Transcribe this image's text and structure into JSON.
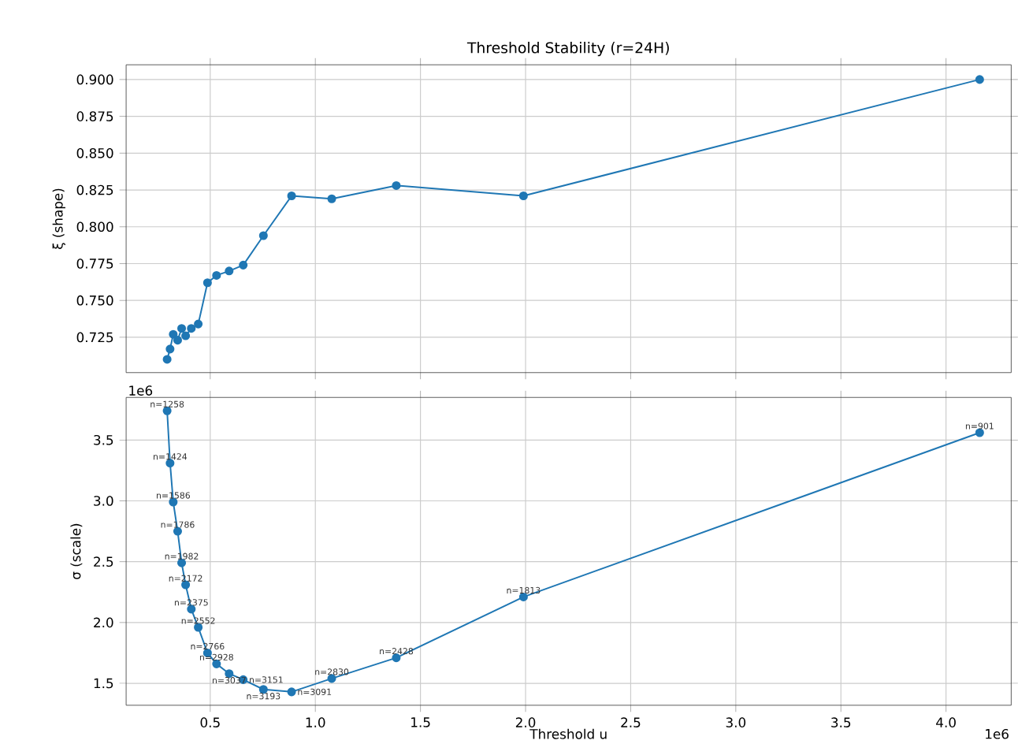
{
  "chart_data": [
    {
      "type": "line",
      "title": "Threshold Stability (r=24H)",
      "ylabel": "ξ (shape)",
      "x": [
        0.295,
        0.309,
        0.324,
        0.345,
        0.364,
        0.383,
        0.41,
        0.443,
        0.487,
        0.53,
        0.59,
        0.657,
        0.753,
        0.887,
        1.078,
        1.385,
        1.99,
        4.16
      ],
      "series": [
        {
          "color": "#1f77b4",
          "values": [
            0.71,
            0.717,
            0.727,
            0.723,
            0.731,
            0.726,
            0.731,
            0.734,
            0.762,
            0.767,
            0.77,
            0.774,
            0.794,
            0.821,
            0.819,
            0.828,
            0.821,
            0.9
          ]
        }
      ],
      "xlim": [
        0.1,
        4.31
      ],
      "ylim": [
        0.701,
        0.91
      ],
      "xticks": [
        {
          "value": 0.5,
          "label": null
        },
        {
          "value": 1.0,
          "label": null
        },
        {
          "value": 1.5,
          "label": null
        },
        {
          "value": 2.0,
          "label": null
        },
        {
          "value": 2.5,
          "label": null
        },
        {
          "value": 3.0,
          "label": null
        },
        {
          "value": 3.5,
          "label": null
        },
        {
          "value": 4.0,
          "label": null
        }
      ],
      "yticks": [
        {
          "value": 0.725,
          "label": "0.725"
        },
        {
          "value": 0.75,
          "label": "0.750"
        },
        {
          "value": 0.775,
          "label": "0.775"
        },
        {
          "value": 0.8,
          "label": "0.800"
        },
        {
          "value": 0.825,
          "label": "0.825"
        },
        {
          "value": 0.85,
          "label": "0.850"
        },
        {
          "value": 0.875,
          "label": "0.875"
        },
        {
          "value": 0.9,
          "label": "0.900"
        }
      ],
      "tick_labels": "y",
      "grid": true,
      "marker": "circle",
      "line_style": "solid"
    },
    {
      "type": "line",
      "xlabel": "Threshold u",
      "ylabel": "σ (scale)",
      "x": [
        0.295,
        0.309,
        0.324,
        0.345,
        0.364,
        0.383,
        0.41,
        0.443,
        0.487,
        0.53,
        0.59,
        0.657,
        0.753,
        0.887,
        1.078,
        1.385,
        1.99,
        4.16
      ],
      "series": [
        {
          "color": "#1f77b4",
          "values": [
            3.74,
            3.31,
            2.99,
            2.75,
            2.49,
            2.31,
            2.11,
            1.96,
            1.75,
            1.66,
            1.58,
            1.53,
            1.45,
            1.43,
            1.54,
            1.71,
            2.21,
            3.56
          ]
        }
      ],
      "xlim": [
        0.1,
        4.31
      ],
      "ylim": [
        1.32,
        3.85
      ],
      "xticks": [
        {
          "value": 0.5,
          "label": "0.5"
        },
        {
          "value": 1.0,
          "label": "1.0"
        },
        {
          "value": 1.5,
          "label": "1.5"
        },
        {
          "value": 2.0,
          "label": "2.0"
        },
        {
          "value": 2.5,
          "label": "2.5"
        },
        {
          "value": 3.0,
          "label": "3.0"
        },
        {
          "value": 3.5,
          "label": "3.5"
        },
        {
          "value": 4.0,
          "label": "4.0"
        }
      ],
      "yticks": [
        {
          "value": 1.5,
          "label": "1.5"
        },
        {
          "value": 2.0,
          "label": "2.0"
        },
        {
          "value": 2.5,
          "label": "2.5"
        },
        {
          "value": 3.0,
          "label": "3.0"
        },
        {
          "value": 3.5,
          "label": "3.5"
        }
      ],
      "grid": true,
      "marker": "circle",
      "line_style": "solid",
      "annotations": [
        "1e6",
        "1e6",
        {
          "text": "n=1258",
          "x": 0.295,
          "y": 3.74
        },
        {
          "text": "n=1424",
          "x": 0.309,
          "y": 3.31
        },
        {
          "text": "n=1586",
          "x": 0.324,
          "y": 2.99
        },
        {
          "text": "n=1786",
          "x": 0.345,
          "y": 2.75
        },
        {
          "text": "n=1982",
          "x": 0.364,
          "y": 2.49
        },
        {
          "text": "n=2172",
          "x": 0.383,
          "y": 2.31
        },
        {
          "text": "n=2375",
          "x": 0.41,
          "y": 2.11
        },
        {
          "text": "n=2552",
          "x": 0.443,
          "y": 1.96
        },
        {
          "text": "n=2766",
          "x": 0.487,
          "y": 1.75
        },
        {
          "text": "n=2928",
          "x": 0.53,
          "y": 1.66
        },
        {
          "text": "n=3037",
          "x": 0.59,
          "y": 1.58
        },
        {
          "text": "n=3151",
          "x": 0.657,
          "y": 1.53
        },
        {
          "text": "n=3193",
          "x": 0.753,
          "y": 1.45
        },
        {
          "text": "n=3091",
          "x": 0.887,
          "y": 1.43
        },
        {
          "text": "n=2830",
          "x": 1.078,
          "y": 1.54
        },
        {
          "text": "n=2428",
          "x": 1.385,
          "y": 1.71
        },
        {
          "text": "n=1813",
          "x": 1.99,
          "y": 2.21
        },
        {
          "text": "n=901",
          "x": 4.16,
          "y": 3.56
        }
      ]
    }
  ]
}
